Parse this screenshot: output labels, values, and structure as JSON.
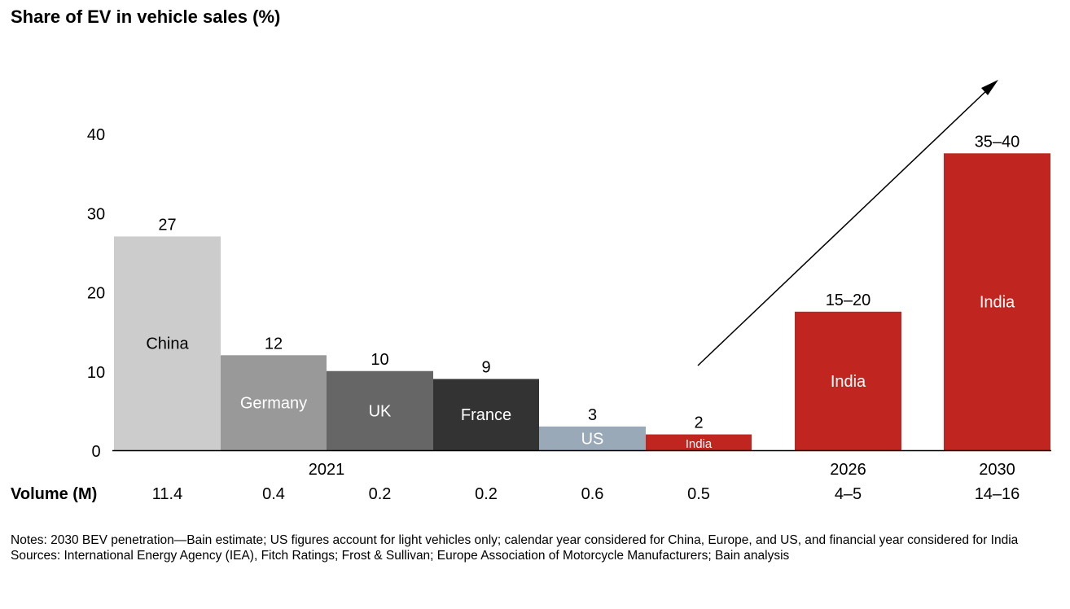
{
  "chart_data": {
    "type": "bar",
    "title": "Share of EV in vehicle sales (%)",
    "ylim": [
      0,
      40
    ],
    "yticks": [
      0,
      10,
      20,
      30,
      40
    ],
    "grid": false,
    "row_label": "Volume (M)",
    "bars": [
      {
        "label": "China",
        "value": 27,
        "value_label": "27",
        "volume": "11.4",
        "color": "#cccccc",
        "label_color": "#000000"
      },
      {
        "label": "Germany",
        "value": 12,
        "value_label": "12",
        "volume": "0.4",
        "color": "#999999",
        "label_color": "#ffffff"
      },
      {
        "label": "UK",
        "value": 10,
        "value_label": "10",
        "volume": "0.2",
        "color": "#666666",
        "label_color": "#ffffff"
      },
      {
        "label": "France",
        "value": 9,
        "value_label": "9",
        "volume": "0.2",
        "color": "#333333",
        "label_color": "#ffffff"
      },
      {
        "label": "US",
        "value": 3,
        "value_label": "3",
        "volume": "0.6",
        "color": "#9aa9b8",
        "label_color": "#ffffff"
      },
      {
        "label": "India",
        "value": 2,
        "value_label": "2",
        "volume": "0.5",
        "color": "#c0251f",
        "label_color": "#ffffff"
      },
      {
        "label": "India",
        "value": 17.5,
        "value_label": "15–20",
        "volume": "4–5",
        "color": "#c0251f",
        "label_color": "#ffffff",
        "year": "2026"
      },
      {
        "label": "India",
        "value": 37.5,
        "value_label": "35–40",
        "volume": "14–16",
        "color": "#c0251f",
        "label_color": "#ffffff",
        "year": "2030"
      }
    ],
    "group_label_2021": "2021"
  },
  "notes": {
    "line1": "Notes: 2030 BEV penetration—Bain estimate; US figures account for light vehicles only; calendar year considered for China, Europe, and US, and financial year considered for India",
    "line2": "Sources: International Energy Agency (IEA), Fitch Ratings; Frost & Sullivan; Europe Association of Motorcycle Manufacturers; Bain analysis"
  }
}
